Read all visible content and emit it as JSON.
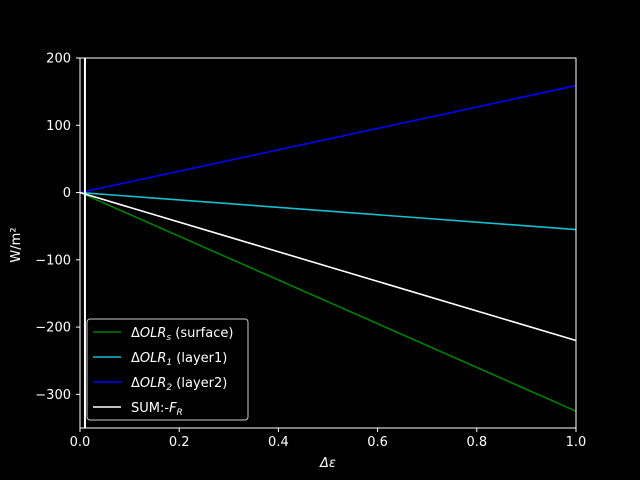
{
  "chart_data": {
    "type": "line",
    "title": "",
    "xlabel": "Δε",
    "ylabel": "W/m²",
    "xlim": [
      0.0,
      1.0
    ],
    "ylim": [
      -350,
      200
    ],
    "x_ticks": [
      "0.0",
      "0.2",
      "0.4",
      "0.6",
      "0.8",
      "1.0"
    ],
    "y_ticks": [
      "200",
      "100",
      "0",
      "−100",
      "−200",
      "−300"
    ],
    "x_tick_values": [
      0.0,
      0.2,
      0.4,
      0.6,
      0.8,
      1.0
    ],
    "y_tick_values": [
      200,
      100,
      0,
      -100,
      -200,
      -300
    ],
    "grid": false,
    "legend_position": "lower-left",
    "background": "#000000",
    "vertical_marker": {
      "x": 0.01,
      "color": "#ffffff"
    },
    "series": [
      {
        "name": "ΔOLR_s (surface)",
        "legend_label": {
          "pre": "Δ",
          "math": "OLR",
          "sub": "s",
          "post": " (surface)"
        },
        "color": "#008000",
        "x": [
          0.0,
          1.0
        ],
        "y": [
          0,
          -325
        ]
      },
      {
        "name": "ΔOLR_1 (layer1)",
        "legend_label": {
          "pre": "Δ",
          "math": "OLR",
          "sub": "1",
          "post": " (layer1)"
        },
        "color": "#17becf",
        "x": [
          0.0,
          1.0
        ],
        "y": [
          0,
          -55
        ]
      },
      {
        "name": "ΔOLR_2 (layer2)",
        "legend_label": {
          "pre": "Δ",
          "math": "OLR",
          "sub": "2",
          "post": " (layer2)"
        },
        "color": "#0000ff",
        "x": [
          0.0,
          1.0
        ],
        "y": [
          0,
          159
        ]
      },
      {
        "name": "SUM:-F_R",
        "legend_label": {
          "pre": "SUM:-",
          "math": "F",
          "sub": "R",
          "post": ""
        },
        "color": "#ffffff",
        "x": [
          0.0,
          1.0
        ],
        "y": [
          0,
          -220
        ]
      }
    ]
  }
}
